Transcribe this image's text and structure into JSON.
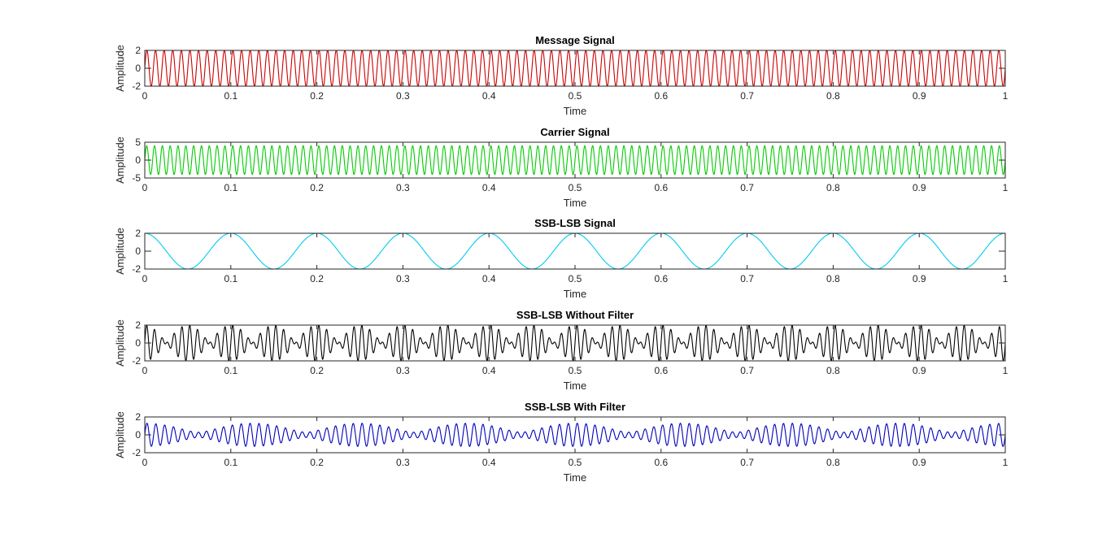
{
  "chart_data": [
    {
      "type": "line",
      "title": "Message Signal",
      "xlabel": "Time",
      "ylabel": "Amplitude",
      "xlim": [
        0,
        1
      ],
      "ylim": [
        -2,
        2
      ],
      "xticks": [
        "0",
        "0.1",
        "0.2",
        "0.3",
        "0.4",
        "0.5",
        "0.6",
        "0.7",
        "0.8",
        "0.9",
        "1"
      ],
      "yticks": [
        "-2",
        "0",
        "2"
      ],
      "color": "#cc0000",
      "series": [
        {
          "function": "sine",
          "amplitude": 2,
          "frequency_hz": 100,
          "phase": "sine"
        }
      ]
    },
    {
      "type": "line",
      "title": "Carrier Signal",
      "xlabel": "Time",
      "ylabel": "Amplitude",
      "xlim": [
        0,
        1
      ],
      "ylim": [
        -5,
        5
      ],
      "xticks": [
        "0",
        "0.1",
        "0.2",
        "0.3",
        "0.4",
        "0.5",
        "0.6",
        "0.7",
        "0.8",
        "0.9",
        "1"
      ],
      "yticks": [
        "-5",
        "0",
        "5"
      ],
      "color": "#00cc00",
      "series": [
        {
          "function": "sine",
          "amplitude": 4,
          "frequency_hz": 110,
          "phase": "sine"
        }
      ]
    },
    {
      "type": "line",
      "title": "SSB-LSB Signal",
      "xlabel": "Time",
      "ylabel": "Amplitude",
      "xlim": [
        0,
        1
      ],
      "ylim": [
        -2,
        2
      ],
      "xticks": [
        "0",
        "0.1",
        "0.2",
        "0.3",
        "0.4",
        "0.5",
        "0.6",
        "0.7",
        "0.8",
        "0.9",
        "1"
      ],
      "yticks": [
        "-2",
        "0",
        "2"
      ],
      "color": "#00ccee",
      "series": [
        {
          "function": "cosine",
          "amplitude": 2,
          "frequency_hz": 10,
          "phase": "cosine"
        }
      ]
    },
    {
      "type": "line",
      "title": "SSB-LSB Without Filter",
      "xlabel": "Time",
      "ylabel": "Amplitude",
      "xlim": [
        0,
        1
      ],
      "ylim": [
        -2,
        2
      ],
      "xticks": [
        "0",
        "0.1",
        "0.2",
        "0.3",
        "0.4",
        "0.5",
        "0.6",
        "0.7",
        "0.8",
        "0.9",
        "1"
      ],
      "yticks": [
        "-2",
        "0",
        "2"
      ],
      "color": "#000000",
      "series": [
        {
          "function": "sum_of_sines",
          "components": [
            {
              "amplitude": 1,
              "frequency_hz": 100,
              "phase": "sine"
            },
            {
              "amplitude": 1,
              "frequency_hz": 120,
              "phase": "sine"
            }
          ]
        }
      ]
    },
    {
      "type": "line",
      "title": "SSB-LSB With Filter",
      "xlabel": "Time",
      "ylabel": "Amplitude",
      "xlim": [
        0,
        1
      ],
      "ylim": [
        -2,
        2
      ],
      "xticks": [
        "0",
        "0.1",
        "0.2",
        "0.3",
        "0.4",
        "0.5",
        "0.6",
        "0.7",
        "0.8",
        "0.9",
        "1"
      ],
      "yticks": [
        "-2",
        "0",
        "2"
      ],
      "color": "#0000bb",
      "series": [
        {
          "function": "sum_of_sines",
          "components": [
            {
              "amplitude": 0.8,
              "frequency_hz": 100,
              "phase": "sine"
            },
            {
              "amplitude": 0.5,
              "frequency_hz": 92,
              "phase": "sine"
            }
          ]
        }
      ]
    }
  ]
}
